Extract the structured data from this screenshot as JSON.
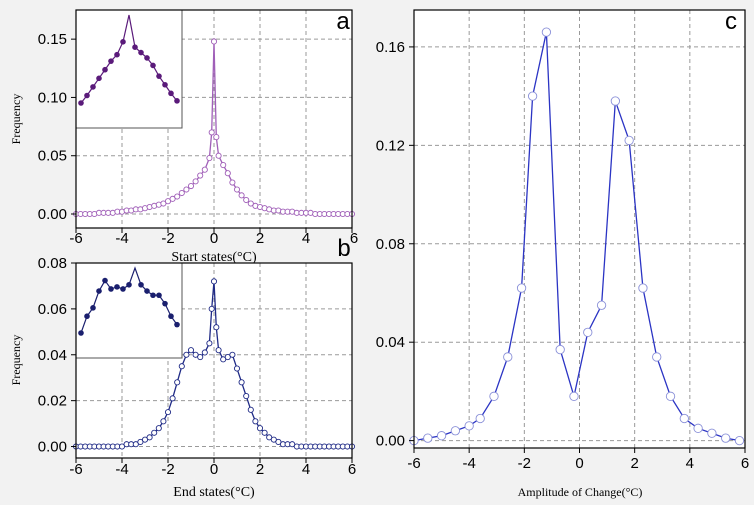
{
  "figure": {
    "background": "#f2f2f2",
    "plot_background": "#ffffff",
    "grid_color": "#9a9a9a",
    "axis_color": "#000000"
  },
  "chart_data": [
    {
      "id": "a",
      "panel_letter": "a",
      "type": "line",
      "xlabel": "Start states(°C)",
      "ylabel": "Frequency",
      "xlim": [
        -6,
        6
      ],
      "ylim": [
        -0.012,
        0.175
      ],
      "xticks": [
        -6,
        -4,
        -2,
        0,
        2,
        4,
        6
      ],
      "xtick_labels": [
        "-6",
        "-4",
        "-2",
        "0",
        "2",
        "4",
        ""
      ],
      "yticks": [
        0.0,
        0.05,
        0.1,
        0.15
      ],
      "ytick_labels": [
        "0.00",
        "0.05",
        "0.10",
        "0.15"
      ],
      "grid": true,
      "color": "#a05fb8",
      "marker": "open-circle",
      "series": [
        {
          "x": [
            -6.0,
            -5.8,
            -5.6,
            -5.4,
            -5.2,
            -5.0,
            -4.8,
            -4.6,
            -4.4,
            -4.2,
            -4.0,
            -3.8,
            -3.6,
            -3.4,
            -3.2,
            -3.0,
            -2.8,
            -2.6,
            -2.4,
            -2.2,
            -2.0,
            -1.8,
            -1.6,
            -1.4,
            -1.2,
            -1.0,
            -0.8,
            -0.6,
            -0.4,
            -0.2,
            -0.1,
            0.0,
            0.1,
            0.2,
            0.4,
            0.6,
            0.8,
            1.0,
            1.2,
            1.4,
            1.6,
            1.8,
            2.0,
            2.2,
            2.4,
            2.6,
            2.8,
            3.0,
            3.2,
            3.4,
            3.6,
            3.8,
            4.0,
            4.2,
            4.4,
            4.6,
            4.8,
            5.0,
            5.2,
            5.4,
            5.6,
            5.8,
            6.0
          ],
          "y": [
            0.0,
            0.0,
            0.0,
            0.0,
            0.0,
            0.001,
            0.001,
            0.001,
            0.001,
            0.002,
            0.002,
            0.003,
            0.003,
            0.004,
            0.004,
            0.005,
            0.006,
            0.007,
            0.008,
            0.009,
            0.011,
            0.013,
            0.015,
            0.018,
            0.021,
            0.024,
            0.028,
            0.033,
            0.038,
            0.048,
            0.07,
            0.148,
            0.066,
            0.05,
            0.042,
            0.035,
            0.027,
            0.021,
            0.016,
            0.012,
            0.009,
            0.007,
            0.006,
            0.005,
            0.004,
            0.003,
            0.003,
            0.002,
            0.002,
            0.002,
            0.001,
            0.001,
            0.001,
            0.001,
            0.0,
            0.0,
            0.0,
            0.0,
            0.0,
            0.0,
            0.0,
            0.0,
            0.0
          ]
        }
      ],
      "inset": {
        "color": "#5a1a7a",
        "marker": "filled-circle",
        "x": [
          0,
          1,
          2,
          3,
          4,
          5,
          6,
          7,
          8,
          9,
          10,
          11,
          12,
          13,
          14,
          15,
          16
        ],
        "y": [
          0.103,
          0.11,
          0.118,
          0.126,
          0.134,
          0.142,
          0.148,
          0.16,
          0.185,
          0.155,
          0.15,
          0.145,
          0.138,
          0.128,
          0.12,
          0.112,
          0.105
        ]
      }
    },
    {
      "id": "b",
      "panel_letter": "b",
      "type": "line",
      "xlabel": "End states(°C)",
      "ylabel": "Frequency",
      "xlim": [
        -6,
        6
      ],
      "ylim": [
        -0.005,
        0.08
      ],
      "xticks": [
        -6,
        -4,
        -2,
        0,
        2,
        4,
        6
      ],
      "xtick_labels": [
        "-6",
        "-4",
        "-2",
        "0",
        "2",
        "4",
        "6"
      ],
      "yticks": [
        0.0,
        0.02,
        0.04,
        0.06,
        0.08
      ],
      "ytick_labels": [
        "0.00",
        "0.02",
        "0.04",
        "0.06",
        "0.08"
      ],
      "grid": true,
      "color": "#1f2a86",
      "marker": "open-circle",
      "series": [
        {
          "x": [
            -6.0,
            -5.8,
            -5.6,
            -5.4,
            -5.2,
            -5.0,
            -4.8,
            -4.6,
            -4.4,
            -4.2,
            -4.0,
            -3.8,
            -3.6,
            -3.4,
            -3.2,
            -3.0,
            -2.8,
            -2.6,
            -2.4,
            -2.2,
            -2.0,
            -1.8,
            -1.6,
            -1.4,
            -1.2,
            -1.0,
            -0.8,
            -0.6,
            -0.4,
            -0.2,
            -0.1,
            0.0,
            0.1,
            0.2,
            0.4,
            0.6,
            0.8,
            1.0,
            1.2,
            1.4,
            1.6,
            1.8,
            2.0,
            2.2,
            2.4,
            2.6,
            2.8,
            3.0,
            3.2,
            3.4,
            3.6,
            3.8,
            4.0,
            4.2,
            4.4,
            4.6,
            4.8,
            5.0,
            5.2,
            5.4,
            5.6,
            5.8,
            6.0
          ],
          "y": [
            0.0,
            0.0,
            0.0,
            0.0,
            0.0,
            0.0,
            0.0,
            0.0,
            0.0,
            0.0,
            0.0,
            0.001,
            0.001,
            0.001,
            0.002,
            0.003,
            0.004,
            0.006,
            0.008,
            0.011,
            0.015,
            0.021,
            0.028,
            0.035,
            0.04,
            0.042,
            0.04,
            0.039,
            0.041,
            0.045,
            0.06,
            0.072,
            0.052,
            0.042,
            0.038,
            0.039,
            0.04,
            0.034,
            0.028,
            0.022,
            0.016,
            0.011,
            0.008,
            0.006,
            0.004,
            0.003,
            0.002,
            0.001,
            0.001,
            0.001,
            0.0,
            0.0,
            0.0,
            0.0,
            0.0,
            0.0,
            0.0,
            0.0,
            0.0,
            0.0,
            0.0,
            0.0,
            0.0
          ]
        }
      ],
      "inset": {
        "color": "#1a1f6e",
        "marker": "filled-circle",
        "x": [
          0,
          1,
          2,
          3,
          4,
          5,
          6,
          7,
          8,
          9,
          10,
          11,
          12,
          13,
          14,
          15,
          16
        ],
        "y": [
          0.04,
          0.048,
          0.052,
          0.06,
          0.065,
          0.061,
          0.062,
          0.061,
          0.063,
          0.071,
          0.063,
          0.06,
          0.058,
          0.058,
          0.054,
          0.048,
          0.044
        ]
      }
    },
    {
      "id": "c",
      "panel_letter": "c",
      "type": "line",
      "xlabel": "Amplitude of Change(°C)",
      "ylabel": "",
      "xlim": [
        -6,
        6
      ],
      "ylim": [
        -0.003,
        0.175
      ],
      "xticks": [
        -6,
        -4,
        -2,
        0,
        2,
        4,
        6
      ],
      "xtick_labels": [
        "-6",
        "-4",
        "-2",
        "0",
        "2",
        "4",
        "6"
      ],
      "yticks": [
        0.0,
        0.04,
        0.08,
        0.12,
        0.16
      ],
      "ytick_labels": [
        "0.00",
        "0.04",
        "0.08",
        "0.12",
        "0.16"
      ],
      "grid": true,
      "color": "#2b34c4",
      "marker": "open-circle",
      "series": [
        {
          "x": [
            -6.0,
            -5.5,
            -5.0,
            -4.5,
            -4.0,
            -3.6,
            -3.1,
            -2.6,
            -2.1,
            -1.7,
            -1.2,
            -0.7,
            -0.2,
            0.3,
            0.8,
            1.3,
            1.8,
            2.3,
            2.8,
            3.3,
            3.8,
            4.3,
            4.8,
            5.3,
            5.8
          ],
          "y": [
            0.0,
            0.001,
            0.002,
            0.004,
            0.006,
            0.009,
            0.018,
            0.034,
            0.062,
            0.14,
            0.166,
            0.037,
            0.018,
            0.044,
            0.055,
            0.138,
            0.122,
            0.062,
            0.034,
            0.018,
            0.009,
            0.005,
            0.003,
            0.001,
            0.0
          ]
        }
      ]
    }
  ]
}
